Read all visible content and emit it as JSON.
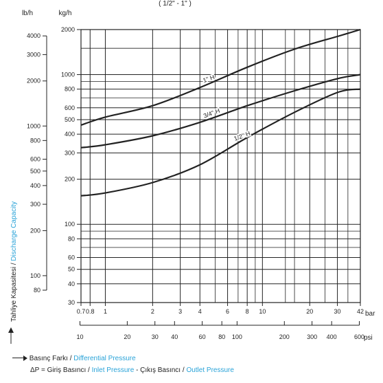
{
  "chart_data": {
    "type": "line",
    "subtitle": "( 1/2\" - 1\" )",
    "y_units": {
      "primary": "kg/h",
      "secondary": "lb/h"
    },
    "x_units": {
      "primary": "bar",
      "secondary": "psi"
    },
    "x_scale": "log",
    "y_scale": "log",
    "xlim_bar": [
      0.7,
      42
    ],
    "ylim_kg_h": [
      30,
      2000
    ],
    "grid": true,
    "ylabel": {
      "tr": "Tahliye Kapasitesi",
      "sep": " / ",
      "en": "Discharge Capacity"
    },
    "x_ticks_bar": [
      {
        "v": 0.7,
        "label": "0.7"
      },
      {
        "v": 0.8,
        "label": "0.8"
      },
      {
        "v": 1,
        "label": "1"
      },
      {
        "v": 2,
        "label": "2"
      },
      {
        "v": 3,
        "label": "3"
      },
      {
        "v": 4,
        "label": "4"
      },
      {
        "v": 6,
        "label": "6"
      },
      {
        "v": 8,
        "label": "8"
      },
      {
        "v": 10,
        "label": "10"
      },
      {
        "v": 20,
        "label": "20"
      },
      {
        "v": 30,
        "label": "30"
      },
      {
        "v": 42,
        "label": "42"
      }
    ],
    "x_ticks_psi": [
      {
        "v": 10,
        "label": "10"
      },
      {
        "v": 20,
        "label": "20"
      },
      {
        "v": 30,
        "label": "30"
      },
      {
        "v": 40,
        "label": "40"
      },
      {
        "v": 60,
        "label": "60"
      },
      {
        "v": 80,
        "label": "80"
      },
      {
        "v": 100,
        "label": "100"
      },
      {
        "v": 200,
        "label": "200"
      },
      {
        "v": 300,
        "label": "300"
      },
      {
        "v": 400,
        "label": "400"
      },
      {
        "v": 600,
        "label": "600"
      }
    ],
    "y_ticks_kg": [
      {
        "v": 30,
        "label": "30"
      },
      {
        "v": 40,
        "label": "40"
      },
      {
        "v": 50,
        "label": "50"
      },
      {
        "v": 60,
        "label": "60"
      },
      {
        "v": 80,
        "label": "80"
      },
      {
        "v": 100,
        "label": "100"
      },
      {
        "v": 200,
        "label": "200"
      },
      {
        "v": 300,
        "label": "300"
      },
      {
        "v": 400,
        "label": "400"
      },
      {
        "v": 500,
        "label": "500"
      },
      {
        "v": 600,
        "label": "600"
      },
      {
        "v": 800,
        "label": "800"
      },
      {
        "v": 1000,
        "label": "1000"
      },
      {
        "v": 2000,
        "label": "2000"
      }
    ],
    "y_ticks_lb": [
      {
        "v": 80,
        "label": "80"
      },
      {
        "v": 100,
        "label": "100"
      },
      {
        "v": 200,
        "label": "200"
      },
      {
        "v": 300,
        "label": "300"
      },
      {
        "v": 400,
        "label": "400"
      },
      {
        "v": 500,
        "label": "500"
      },
      {
        "v": 600,
        "label": "600"
      },
      {
        "v": 800,
        "label": "800"
      },
      {
        "v": 1000,
        "label": "1000"
      },
      {
        "v": 2000,
        "label": "2000"
      },
      {
        "v": 3000,
        "label": "3000"
      },
      {
        "v": 4000,
        "label": "4000"
      }
    ],
    "series": [
      {
        "name": "1\" H",
        "points": [
          [
            0.7,
            460
          ],
          [
            1,
            520
          ],
          [
            2,
            620
          ],
          [
            4,
            820
          ],
          [
            8,
            1120
          ],
          [
            16,
            1480
          ],
          [
            30,
            1800
          ],
          [
            42,
            2000
          ]
        ]
      },
      {
        "name": "3/4\" H",
        "points": [
          [
            0.7,
            325
          ],
          [
            1,
            340
          ],
          [
            2,
            390
          ],
          [
            4,
            480
          ],
          [
            8,
            620
          ],
          [
            16,
            780
          ],
          [
            30,
            940
          ],
          [
            42,
            1000
          ]
        ]
      },
      {
        "name": "1/2\" H",
        "points": [
          [
            0.7,
            155
          ],
          [
            1,
            162
          ],
          [
            2,
            190
          ],
          [
            4,
            250
          ],
          [
            8,
            380
          ],
          [
            16,
            560
          ],
          [
            30,
            760
          ],
          [
            42,
            800
          ]
        ]
      }
    ]
  },
  "footer": {
    "line1": {
      "arrow": "→",
      "tr": "Basınç Farkı / ",
      "en": "Differential Pressure"
    },
    "line2": {
      "a": "ΔP = Giriş Basıncı / ",
      "b": "Inlet Pressure",
      "c": " - Çıkış Basıncı / ",
      "d": "Outlet Pressure"
    }
  }
}
